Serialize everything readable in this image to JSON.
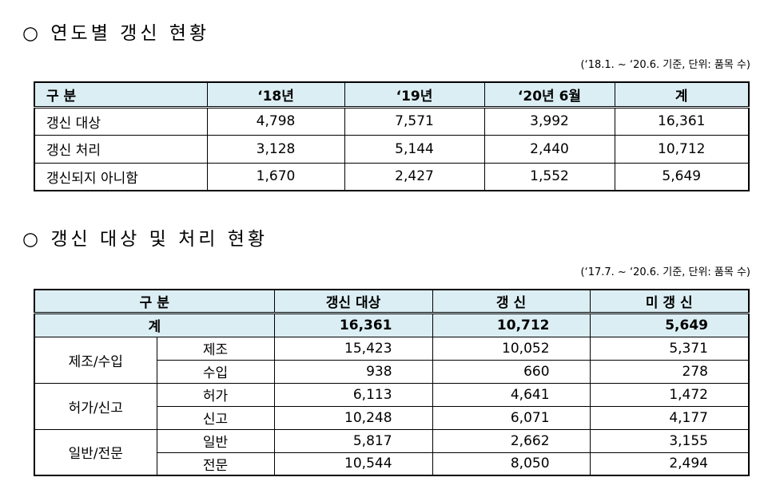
{
  "section1": {
    "heading": "○ 연도별 갱신 현황",
    "note": "(‘18.1. ~ ‘20.6. 기준, 단위: 품목 수)",
    "table": {
      "header": [
        "구 분",
        "‘18년",
        "‘19년",
        "‘20년 6월",
        "계"
      ],
      "rows": [
        [
          "갱신 대상",
          "4,798",
          "7,571",
          "3,992",
          "16,361"
        ],
        [
          "갱신 처리",
          "3,128",
          "5,144",
          "2,440",
          "10,712"
        ],
        [
          "갱신되지 아니함",
          "1,670",
          "2,427",
          "1,552",
          "5,649"
        ]
      ]
    }
  },
  "section2": {
    "heading": "○ 갱신 대상 및 처리 현황",
    "note": "(‘17.7. ~ ‘20.6. 기준, 단위: 품목 수)",
    "table": {
      "header": [
        "구 분",
        "갱신 대상",
        "갱 신",
        "미 갱 신"
      ],
      "total": {
        "label": "계",
        "values": [
          "16,361",
          "10,712",
          "5,649"
        ]
      },
      "groups": [
        {
          "label": "제조/수입",
          "rows": [
            {
              "label": "제조",
              "values": [
                "15,423",
                "10,052",
                "5,371"
              ]
            },
            {
              "label": "수입",
              "values": [
                "938",
                "660",
                "278"
              ]
            }
          ]
        },
        {
          "label": "허가/신고",
          "rows": [
            {
              "label": "허가",
              "values": [
                "6,113",
                "4,641",
                "1,472"
              ]
            },
            {
              "label": "신고",
              "values": [
                "10,248",
                "6,071",
                "4,177"
              ]
            }
          ]
        },
        {
          "label": "일반/전문",
          "rows": [
            {
              "label": "일반",
              "values": [
                "5,817",
                "2,662",
                "3,155"
              ]
            },
            {
              "label": "전문",
              "values": [
                "10,544",
                "8,050",
                "2,494"
              ]
            }
          ]
        }
      ]
    }
  }
}
